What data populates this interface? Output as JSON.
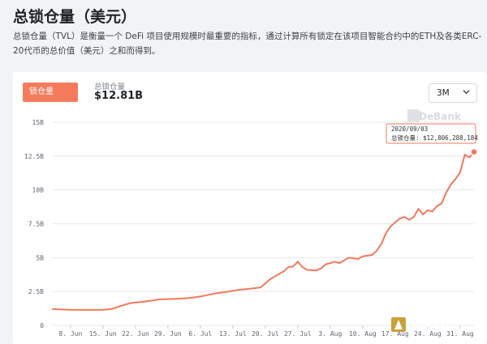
{
  "header": {
    "title": "总锁仓量（美元）",
    "description": "总锁仓量（TVL）是衡量一个 DeFi 项目使用规模时最重要的指标，通过计算所有锁定在该项目智能合约中的ETH及各类ERC-20代币的总价值（美元）之和而得到。"
  },
  "card": {
    "tab_label": "锁仓量",
    "stat_label": "总锁仓量",
    "stat_value": "$12.81B",
    "range_value": "3M"
  },
  "watermark": {
    "text": "DeBank"
  },
  "logo": {
    "text": "金色财经"
  },
  "tooltip": {
    "date": "2020/09/03",
    "value_text": "总锁仓量: $12,806,288,184"
  },
  "colors": {
    "accent": "#f57c5b",
    "line": "#f0795c"
  },
  "chart_data": {
    "type": "line",
    "title": "",
    "xlabel": "",
    "ylabel": "",
    "ylim": [
      0,
      15
    ],
    "y_ticks": [
      {
        "value": 0,
        "label": "0"
      },
      {
        "value": 2.5,
        "label": "2.5B"
      },
      {
        "value": 5,
        "label": "5B"
      },
      {
        "value": 7.5,
        "label": "7.5B"
      },
      {
        "value": 10,
        "label": "10B"
      },
      {
        "value": 12.5,
        "label": "12.5B"
      },
      {
        "value": 15,
        "label": "15B"
      }
    ],
    "x_range": [
      "2020-06-04",
      "2020-09-03"
    ],
    "x_ticks": [
      {
        "date": "2020-06-08",
        "label": "8. Jun"
      },
      {
        "date": "2020-06-15",
        "label": "15. Jun"
      },
      {
        "date": "2020-06-22",
        "label": "22. Jun"
      },
      {
        "date": "2020-06-29",
        "label": "29. Jun"
      },
      {
        "date": "2020-07-06",
        "label": "6. Jul"
      },
      {
        "date": "2020-07-13",
        "label": "13. Jul"
      },
      {
        "date": "2020-07-20",
        "label": "20. Jul"
      },
      {
        "date": "2020-07-27",
        "label": "27. Jul"
      },
      {
        "date": "2020-08-03",
        "label": "3. Aug"
      },
      {
        "date": "2020-08-10",
        "label": "10. Aug"
      },
      {
        "date": "2020-08-17",
        "label": "17. Aug"
      },
      {
        "date": "2020-08-24",
        "label": "24. Aug"
      },
      {
        "date": "2020-08-31",
        "label": "31. Aug"
      }
    ],
    "series": [
      {
        "unit": "B USD",
        "points": [
          [
            "2020-06-04",
            1.2
          ],
          [
            "2020-06-08",
            1.15
          ],
          [
            "2020-06-12",
            1.14
          ],
          [
            "2020-06-15",
            1.15
          ],
          [
            "2020-06-17",
            1.22
          ],
          [
            "2020-06-19",
            1.45
          ],
          [
            "2020-06-21",
            1.65
          ],
          [
            "2020-06-23",
            1.72
          ],
          [
            "2020-06-26",
            1.85
          ],
          [
            "2020-06-27",
            1.92
          ],
          [
            "2020-06-30",
            1.95
          ],
          [
            "2020-07-03",
            2.0
          ],
          [
            "2020-07-05",
            2.08
          ],
          [
            "2020-07-07",
            2.2
          ],
          [
            "2020-07-09",
            2.35
          ],
          [
            "2020-07-12",
            2.5
          ],
          [
            "2020-07-14",
            2.62
          ],
          [
            "2020-07-17",
            2.72
          ],
          [
            "2020-07-19",
            2.8
          ],
          [
            "2020-07-20",
            3.1
          ],
          [
            "2020-07-21",
            3.4
          ],
          [
            "2020-07-22",
            3.6
          ],
          [
            "2020-07-24",
            4.0
          ],
          [
            "2020-07-25",
            4.3
          ],
          [
            "2020-07-26",
            4.35
          ],
          [
            "2020-07-27",
            4.7
          ],
          [
            "2020-07-28",
            4.3
          ],
          [
            "2020-07-29",
            4.1
          ],
          [
            "2020-07-31",
            4.05
          ],
          [
            "2020-08-01",
            4.2
          ],
          [
            "2020-08-02",
            4.5
          ],
          [
            "2020-08-04",
            4.7
          ],
          [
            "2020-08-05",
            4.6
          ],
          [
            "2020-08-06",
            4.8
          ],
          [
            "2020-08-07",
            5.0
          ],
          [
            "2020-08-09",
            4.9
          ],
          [
            "2020-08-10",
            5.1
          ],
          [
            "2020-08-12",
            5.2
          ],
          [
            "2020-08-13",
            5.5
          ],
          [
            "2020-08-14",
            6.0
          ],
          [
            "2020-08-15",
            6.8
          ],
          [
            "2020-08-16",
            7.3
          ],
          [
            "2020-08-17",
            7.6
          ],
          [
            "2020-08-18",
            7.9
          ],
          [
            "2020-08-19",
            8.0
          ],
          [
            "2020-08-20",
            7.8
          ],
          [
            "2020-08-21",
            8.0
          ],
          [
            "2020-08-22",
            8.6
          ],
          [
            "2020-08-23",
            8.2
          ],
          [
            "2020-08-24",
            8.5
          ],
          [
            "2020-08-25",
            8.4
          ],
          [
            "2020-08-26",
            8.8
          ],
          [
            "2020-08-27",
            9.0
          ],
          [
            "2020-08-28",
            9.8
          ],
          [
            "2020-08-29",
            10.4
          ],
          [
            "2020-08-30",
            10.8
          ],
          [
            "2020-08-31",
            11.3
          ],
          [
            "2020-09-01",
            12.6
          ],
          [
            "2020-09-02",
            12.4
          ],
          [
            "2020-09-03",
            12.81
          ]
        ]
      }
    ],
    "grid": true,
    "highlight_point": [
      "2020-09-03",
      12.81
    ]
  }
}
